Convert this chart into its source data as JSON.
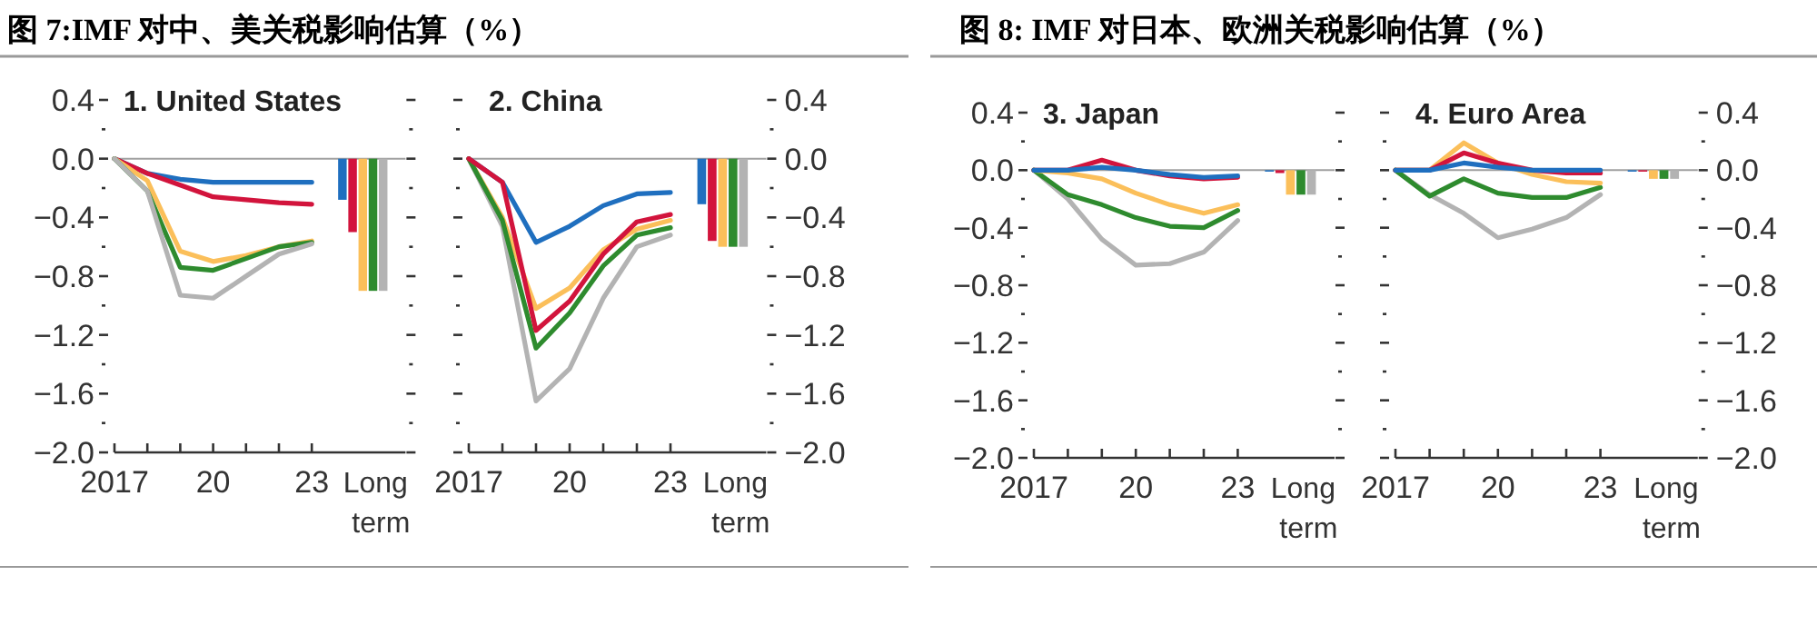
{
  "chart_data": [
    {
      "type": "line",
      "title": "图 7:IMF 对中、美关税影响估算（%）",
      "subtitle": "1. United States",
      "categories": [
        "2017",
        null,
        null,
        "20",
        null,
        null,
        "23",
        "Long term"
      ],
      "ylim": [
        -2.0,
        0.4
      ],
      "yticks": [
        {
          "value": 0.4,
          "label": "0.4"
        },
        {
          "value": 0.2,
          "label": null
        },
        {
          "value": 0,
          "label": "0.0"
        },
        {
          "value": -0.2,
          "label": null
        },
        {
          "value": -0.4,
          "label": "−0.4"
        },
        {
          "value": -0.6,
          "label": null
        },
        {
          "value": -0.8,
          "label": "−0.8"
        },
        {
          "value": -1.0,
          "label": null
        },
        {
          "value": -1.2,
          "label": "−1.2"
        },
        {
          "value": -1.4,
          "label": null
        },
        {
          "value": -1.6,
          "label": "−1.6"
        },
        {
          "value": -1.8,
          "label": null
        },
        {
          "value": -2.0,
          "label": "−2.0"
        }
      ],
      "ref_lines": [
        {
          "axis": "y",
          "value": 0,
          "color": "#a0a0a0"
        }
      ],
      "series": [
        {
          "color": "#1f6fbf",
          "values": [
            0,
            -0.1,
            -0.14,
            -0.16,
            -0.16,
            -0.16,
            -0.16,
            null
          ]
        },
        {
          "color": "#d2143c",
          "values": [
            0,
            -0.1,
            -0.18,
            -0.26,
            -0.28,
            -0.3,
            -0.31,
            null
          ]
        },
        {
          "color": "#fbbf5a",
          "values": [
            0,
            -0.15,
            -0.63,
            -0.7,
            -0.66,
            -0.6,
            -0.56,
            null
          ]
        },
        {
          "color": "#2e8b2e",
          "values": [
            0,
            -0.22,
            -0.74,
            -0.76,
            -0.68,
            -0.6,
            -0.57,
            null
          ]
        },
        {
          "color": "#b3b3b3",
          "values": [
            0,
            -0.22,
            -0.93,
            -0.95,
            -0.8,
            -0.65,
            -0.58,
            null
          ]
        },
        {
          "type": "bar",
          "color": "#1f6fbf",
          "values": [
            null,
            null,
            null,
            null,
            null,
            null,
            null,
            -0.28
          ]
        },
        {
          "type": "bar",
          "color": "#d2143c",
          "values": [
            null,
            null,
            null,
            null,
            null,
            null,
            null,
            -0.5
          ]
        },
        {
          "type": "bar",
          "color": "#fbbf5a",
          "values": [
            null,
            null,
            null,
            null,
            null,
            null,
            null,
            -0.9
          ]
        },
        {
          "type": "bar",
          "color": "#2e8b2e",
          "values": [
            null,
            null,
            null,
            null,
            null,
            null,
            null,
            -0.9
          ]
        },
        {
          "type": "bar",
          "color": "#b3b3b3",
          "values": [
            null,
            null,
            null,
            null,
            null,
            null,
            null,
            -0.9
          ]
        }
      ]
    },
    {
      "type": "line",
      "subtitle": "2. China",
      "categories": [
        "2017",
        null,
        null,
        "20",
        null,
        null,
        "23",
        "Long term"
      ],
      "y2lim": [
        -2.0,
        0.4
      ],
      "y2ticks": [
        {
          "value": 0.4,
          "label": "0.4"
        },
        {
          "value": 0.2,
          "label": null
        },
        {
          "value": 0,
          "label": "0.0"
        },
        {
          "value": -0.2,
          "label": null
        },
        {
          "value": -0.4,
          "label": "−0.4"
        },
        {
          "value": -0.6,
          "label": null
        },
        {
          "value": -0.8,
          "label": "−0.8"
        },
        {
          "value": -1.0,
          "label": null
        },
        {
          "value": -1.2,
          "label": "−1.2"
        },
        {
          "value": -1.4,
          "label": null
        },
        {
          "value": -1.6,
          "label": "−1.6"
        },
        {
          "value": -1.8,
          "label": null
        },
        {
          "value": -2.0,
          "label": "−2.0"
        }
      ],
      "ref_lines": [
        {
          "axis": "y2",
          "value": 0,
          "color": "#a0a0a0"
        }
      ],
      "series": [
        {
          "axis": "y2",
          "color": "#1f6fbf",
          "values": [
            0,
            -0.16,
            -0.57,
            -0.46,
            -0.32,
            -0.24,
            -0.23,
            null
          ]
        },
        {
          "axis": "y2",
          "color": "#fbbf5a",
          "values": [
            0,
            -0.4,
            -1.02,
            -0.88,
            -0.62,
            -0.48,
            -0.42,
            null
          ]
        },
        {
          "axis": "y2",
          "color": "#b3b3b3",
          "values": [
            0,
            -0.46,
            -1.65,
            -1.43,
            -0.95,
            -0.6,
            -0.52,
            null
          ]
        },
        {
          "axis": "y2",
          "color": "#2e8b2e",
          "values": [
            0,
            -0.42,
            -1.29,
            -1.05,
            -0.73,
            -0.52,
            -0.47,
            null
          ]
        },
        {
          "axis": "y2",
          "color": "#d2143c",
          "values": [
            0,
            -0.16,
            -1.17,
            -0.97,
            -0.65,
            -0.43,
            -0.38,
            null
          ]
        },
        {
          "type": "bar",
          "axis": "y2",
          "color": "#1f6fbf",
          "values": [
            null,
            null,
            null,
            null,
            null,
            null,
            null,
            -0.31
          ]
        },
        {
          "type": "bar",
          "axis": "y2",
          "color": "#d2143c",
          "values": [
            null,
            null,
            null,
            null,
            null,
            null,
            null,
            -0.56
          ]
        },
        {
          "type": "bar",
          "axis": "y2",
          "color": "#fbbf5a",
          "values": [
            null,
            null,
            null,
            null,
            null,
            null,
            null,
            -0.6
          ]
        },
        {
          "type": "bar",
          "axis": "y2",
          "color": "#2e8b2e",
          "values": [
            null,
            null,
            null,
            null,
            null,
            null,
            null,
            -0.6
          ]
        },
        {
          "type": "bar",
          "axis": "y2",
          "color": "#b3b3b3",
          "values": [
            null,
            null,
            null,
            null,
            null,
            null,
            null,
            -0.6
          ]
        }
      ]
    },
    {
      "type": "line",
      "title": "图 8: IMF 对日本、欧洲关税影响估算（%）",
      "subtitle": "3. Japan",
      "categories": [
        "2017",
        null,
        null,
        "20",
        null,
        null,
        "23",
        "Long term"
      ],
      "ylim": [
        -2.0,
        0.4
      ],
      "yticks": [
        {
          "value": 0.4,
          "label": "0.4"
        },
        {
          "value": 0.2,
          "label": null
        },
        {
          "value": 0,
          "label": "0.0"
        },
        {
          "value": -0.2,
          "label": null
        },
        {
          "value": -0.4,
          "label": "−0.4"
        },
        {
          "value": -0.6,
          "label": null
        },
        {
          "value": -0.8,
          "label": "−0.8"
        },
        {
          "value": -1.0,
          "label": null
        },
        {
          "value": -1.2,
          "label": "−1.2"
        },
        {
          "value": -1.4,
          "label": null
        },
        {
          "value": -1.6,
          "label": "−1.6"
        },
        {
          "value": -1.8,
          "label": null
        },
        {
          "value": -2.0,
          "label": "−2.0"
        }
      ],
      "ref_lines": [
        {
          "axis": "y",
          "value": 0,
          "color": "#a0a0a0"
        }
      ],
      "series": [
        {
          "color": "#b3b3b3",
          "values": [
            0,
            -0.2,
            -0.48,
            -0.66,
            -0.65,
            -0.57,
            -0.35,
            null
          ]
        },
        {
          "color": "#2e8b2e",
          "values": [
            0,
            -0.17,
            -0.24,
            -0.33,
            -0.39,
            -0.4,
            -0.28,
            null
          ]
        },
        {
          "color": "#fbbf5a",
          "values": [
            0,
            -0.02,
            -0.06,
            -0.16,
            -0.24,
            -0.3,
            -0.24,
            null
          ]
        },
        {
          "color": "#d2143c",
          "values": [
            0,
            0,
            0.07,
            0,
            -0.04,
            -0.06,
            -0.05,
            null
          ]
        },
        {
          "color": "#1f6fbf",
          "values": [
            0,
            0,
            0.02,
            0,
            -0.03,
            -0.05,
            -0.04,
            null
          ]
        },
        {
          "type": "bar",
          "color": "#1f6fbf",
          "values": [
            null,
            null,
            null,
            null,
            null,
            null,
            null,
            -0.01
          ]
        },
        {
          "type": "bar",
          "color": "#d2143c",
          "values": [
            null,
            null,
            null,
            null,
            null,
            null,
            null,
            -0.02
          ]
        },
        {
          "type": "bar",
          "color": "#fbbf5a",
          "values": [
            null,
            null,
            null,
            null,
            null,
            null,
            null,
            -0.17
          ]
        },
        {
          "type": "bar",
          "color": "#2e8b2e",
          "values": [
            null,
            null,
            null,
            null,
            null,
            null,
            null,
            -0.17
          ]
        },
        {
          "type": "bar",
          "color": "#b3b3b3",
          "values": [
            null,
            null,
            null,
            null,
            null,
            null,
            null,
            -0.17
          ]
        }
      ]
    },
    {
      "type": "line",
      "subtitle": "4. Euro Area",
      "categories": [
        "2017",
        null,
        null,
        "20",
        null,
        null,
        "23",
        "Long term"
      ],
      "y2lim": [
        -2.0,
        0.4
      ],
      "y2ticks": [
        {
          "value": 0.4,
          "label": "0.4"
        },
        {
          "value": 0.2,
          "label": null
        },
        {
          "value": 0,
          "label": "0.0"
        },
        {
          "value": -0.2,
          "label": null
        },
        {
          "value": -0.4,
          "label": "−0.4"
        },
        {
          "value": -0.6,
          "label": null
        },
        {
          "value": -0.8,
          "label": "−0.8"
        },
        {
          "value": -1.0,
          "label": null
        },
        {
          "value": -1.2,
          "label": "−1.2"
        },
        {
          "value": -1.4,
          "label": null
        },
        {
          "value": -1.6,
          "label": "−1.6"
        },
        {
          "value": -1.8,
          "label": null
        },
        {
          "value": -2.0,
          "label": "−2.0"
        }
      ],
      "ref_lines": [
        {
          "axis": "y2",
          "value": 0,
          "color": "#a0a0a0"
        }
      ],
      "series": [
        {
          "axis": "y2",
          "color": "#b3b3b3",
          "values": [
            0,
            -0.17,
            -0.3,
            -0.47,
            -0.41,
            -0.33,
            -0.17,
            null
          ]
        },
        {
          "axis": "y2",
          "color": "#2e8b2e",
          "values": [
            0,
            -0.18,
            -0.06,
            -0.16,
            -0.19,
            -0.19,
            -0.12,
            null
          ]
        },
        {
          "axis": "y2",
          "color": "#fbbf5a",
          "values": [
            0,
            0,
            0.19,
            0.05,
            -0.03,
            -0.08,
            -0.09,
            null
          ]
        },
        {
          "axis": "y2",
          "color": "#d2143c",
          "values": [
            0,
            0,
            0.12,
            0.05,
            0,
            -0.02,
            -0.02,
            null
          ]
        },
        {
          "axis": "y2",
          "color": "#1f6fbf",
          "values": [
            0,
            0,
            0.05,
            0.02,
            0,
            0,
            0,
            null
          ]
        },
        {
          "type": "bar",
          "axis": "y2",
          "color": "#1f6fbf",
          "values": [
            null,
            null,
            null,
            null,
            null,
            null,
            null,
            -0.01
          ]
        },
        {
          "type": "bar",
          "axis": "y2",
          "color": "#d2143c",
          "values": [
            null,
            null,
            null,
            null,
            null,
            null,
            null,
            -0.01
          ]
        },
        {
          "type": "bar",
          "axis": "y2",
          "color": "#fbbf5a",
          "values": [
            null,
            null,
            null,
            null,
            null,
            null,
            null,
            -0.06
          ]
        },
        {
          "type": "bar",
          "axis": "y2",
          "color": "#2e8b2e",
          "values": [
            null,
            null,
            null,
            null,
            null,
            null,
            null,
            -0.06
          ]
        },
        {
          "type": "bar",
          "axis": "y2",
          "color": "#b3b3b3",
          "values": [
            null,
            null,
            null,
            null,
            null,
            null,
            null,
            -0.06
          ]
        }
      ]
    }
  ]
}
